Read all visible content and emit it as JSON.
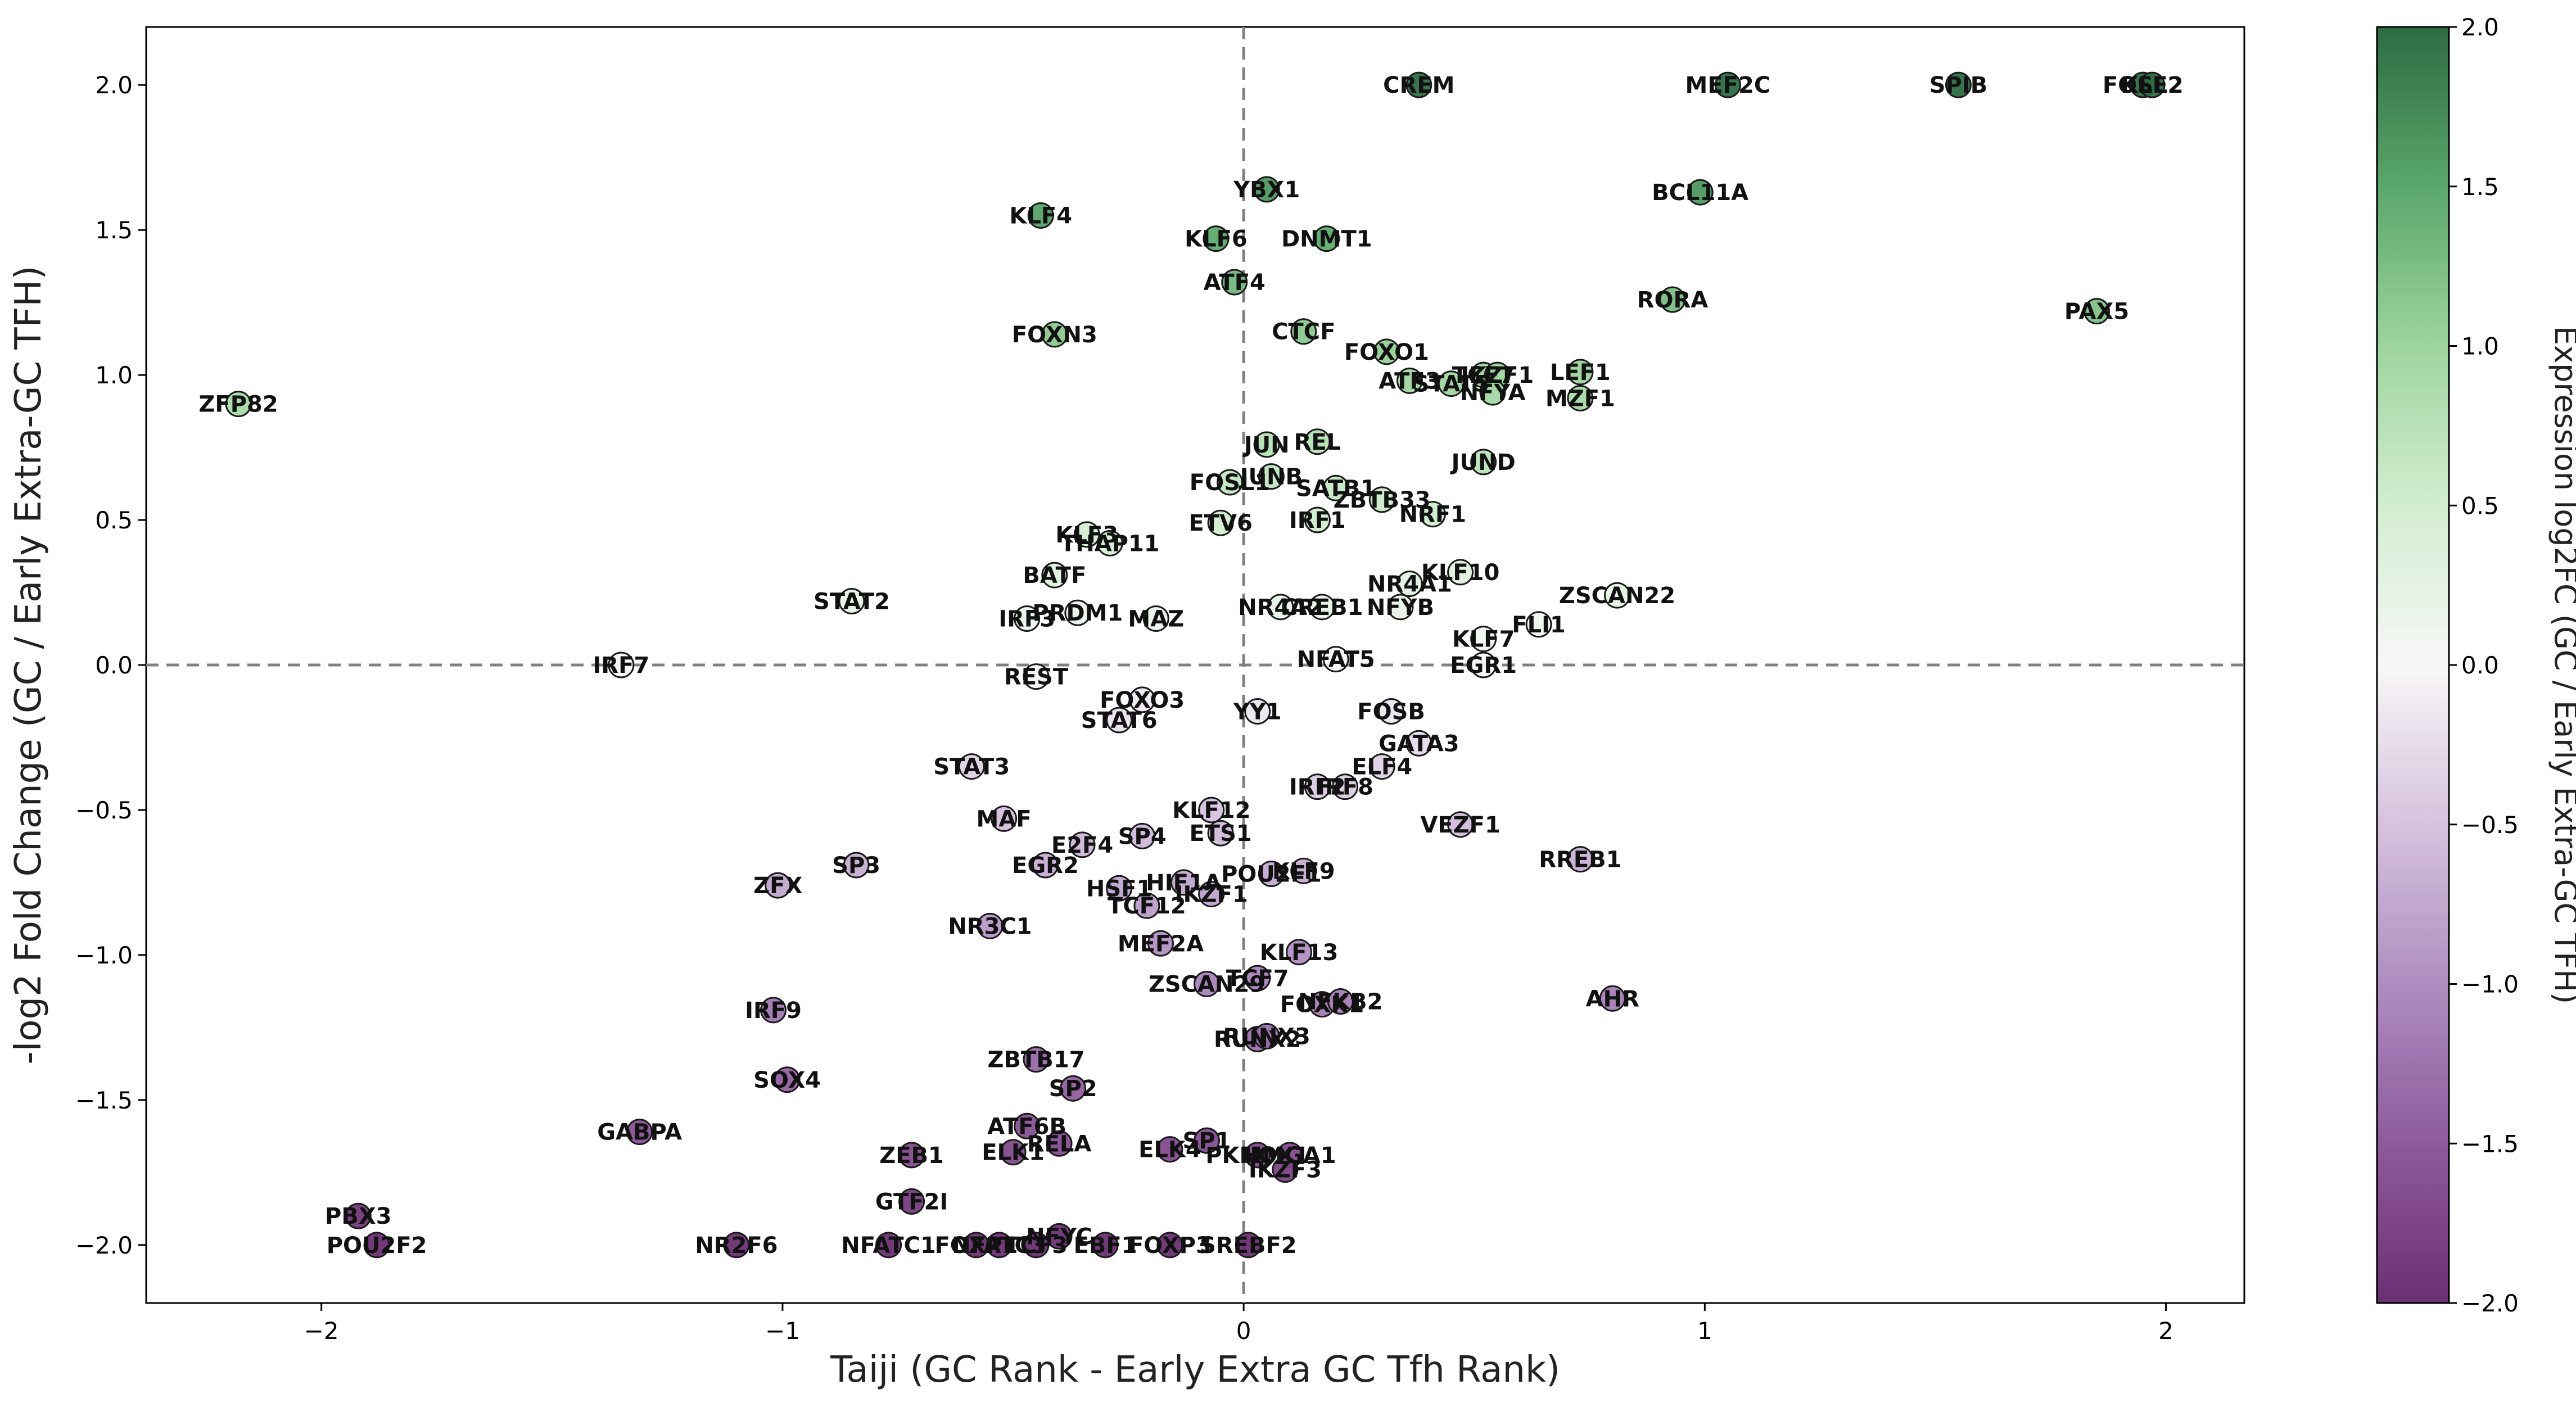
{
  "chart_data": {
    "type": "scatter",
    "title": "",
    "xlabel": "Taiji (GC Rank - Early Extra GC Tfh Rank)",
    "ylabel": "-log2 Fold Change (GC / Early Extra-GC TFH)",
    "xlim": [
      -2.38,
      2.17
    ],
    "ylim": [
      -2.2,
      2.2
    ],
    "x_ticks": [
      -2,
      -1,
      0,
      1,
      2
    ],
    "y_ticks": [
      -2.0,
      -1.5,
      -1.0,
      -0.5,
      0.0,
      0.5,
      1.0,
      1.5,
      2.0
    ],
    "x_tick_labels": [
      "−2",
      "−1",
      "0",
      "1",
      "2"
    ],
    "y_tick_labels": [
      "−2.0",
      "−1.5",
      "−1.0",
      "−0.5",
      "0.0",
      "0.5",
      "1.0",
      "1.5",
      "2.0"
    ],
    "reference_lines": {
      "x": 0,
      "y": 0,
      "style": "dashed"
    },
    "colorbar": {
      "label": "Expression log2FC (GC / Early Extra-GC TFH)",
      "range": [
        -2.0,
        2.0
      ],
      "ticks": [
        -2.0,
        -1.5,
        -1.0,
        -0.5,
        0.0,
        0.5,
        1.0,
        1.5,
        2.0
      ],
      "tick_labels": [
        "−2.0",
        "−1.5",
        "−1.0",
        "−0.5",
        "0.0",
        "0.5",
        "1.0",
        "1.5",
        "2.0"
      ],
      "colormap": "PRGn",
      "low_color": "#6b2f72",
      "mid_color": "#f7f7f7",
      "high_color": "#2e6b43"
    },
    "grid": false,
    "legend": "none",
    "points": [
      {
        "label": "CREM",
        "x": 0.38,
        "y": 2.0
      },
      {
        "label": "MEF2C",
        "x": 1.05,
        "y": 2.0
      },
      {
        "label": "SPIB",
        "x": 1.55,
        "y": 2.0
      },
      {
        "label": "FOSL2",
        "x": 1.95,
        "y": 2.0
      },
      {
        "label": "KLF2",
        "x": 1.97,
        "y": 2.0
      },
      {
        "label": "YBX1",
        "x": 0.05,
        "y": 1.64
      },
      {
        "label": "BCL11A",
        "x": 0.99,
        "y": 1.63
      },
      {
        "label": "KLF4",
        "x": -0.44,
        "y": 1.55
      },
      {
        "label": "KLF6",
        "x": -0.06,
        "y": 1.47
      },
      {
        "label": "DNMT1",
        "x": 0.18,
        "y": 1.47
      },
      {
        "label": "ATF4",
        "x": -0.02,
        "y": 1.32
      },
      {
        "label": "RORA",
        "x": 0.93,
        "y": 1.26
      },
      {
        "label": "PAX5",
        "x": 1.85,
        "y": 1.22
      },
      {
        "label": "FOXN3",
        "x": -0.41,
        "y": 1.14
      },
      {
        "label": "CTCF",
        "x": 0.13,
        "y": 1.15
      },
      {
        "label": "FOXO1",
        "x": 0.31,
        "y": 1.08
      },
      {
        "label": "TCF7",
        "x": 0.52,
        "y": 1.0
      },
      {
        "label": "IKZF1",
        "x": 0.55,
        "y": 1.0
      },
      {
        "label": "LEF1",
        "x": 0.73,
        "y": 1.01
      },
      {
        "label": "ATF3",
        "x": 0.36,
        "y": 0.98
      },
      {
        "label": "STAT5",
        "x": 0.45,
        "y": 0.97
      },
      {
        "label": "NFYA",
        "x": 0.54,
        "y": 0.94
      },
      {
        "label": "MZF1",
        "x": 0.73,
        "y": 0.92
      },
      {
        "label": "ZFP82",
        "x": -2.18,
        "y": 0.9
      },
      {
        "label": "JUN",
        "x": 0.05,
        "y": 0.76
      },
      {
        "label": "REL",
        "x": 0.16,
        "y": 0.77
      },
      {
        "label": "JUND",
        "x": 0.52,
        "y": 0.7
      },
      {
        "label": "JUNB",
        "x": 0.06,
        "y": 0.65
      },
      {
        "label": "FOSL1",
        "x": -0.03,
        "y": 0.63
      },
      {
        "label": "SATB1",
        "x": 0.2,
        "y": 0.61
      },
      {
        "label": "ZBTB33",
        "x": 0.3,
        "y": 0.57
      },
      {
        "label": "NRF1",
        "x": 0.41,
        "y": 0.52
      },
      {
        "label": "ETV6",
        "x": -0.05,
        "y": 0.49
      },
      {
        "label": "IRF1",
        "x": 0.16,
        "y": 0.5
      },
      {
        "label": "KLF3",
        "x": -0.34,
        "y": 0.45
      },
      {
        "label": "THAP11",
        "x": -0.29,
        "y": 0.42
      },
      {
        "label": "BATF",
        "x": -0.41,
        "y": 0.31
      },
      {
        "label": "KLF10",
        "x": 0.47,
        "y": 0.32
      },
      {
        "label": "NR4A1",
        "x": 0.36,
        "y": 0.28
      },
      {
        "label": "ZSCAN22",
        "x": 0.81,
        "y": 0.24
      },
      {
        "label": "STAT2",
        "x": -0.85,
        "y": 0.22
      },
      {
        "label": "NR4A2",
        "x": 0.08,
        "y": 0.2
      },
      {
        "label": "CREB1",
        "x": 0.17,
        "y": 0.2
      },
      {
        "label": "NFYB",
        "x": 0.34,
        "y": 0.2
      },
      {
        "label": "PRDM1",
        "x": -0.36,
        "y": 0.18
      },
      {
        "label": "IRF3",
        "x": -0.47,
        "y": 0.16
      },
      {
        "label": "MAZ",
        "x": -0.19,
        "y": 0.16
      },
      {
        "label": "FLI1",
        "x": 0.64,
        "y": 0.14
      },
      {
        "label": "KLF7",
        "x": 0.52,
        "y": 0.09
      },
      {
        "label": "IRF7",
        "x": -1.35,
        "y": 0.0
      },
      {
        "label": "NFAT5",
        "x": 0.2,
        "y": 0.02
      },
      {
        "label": "EGR1",
        "x": 0.52,
        "y": 0.0
      },
      {
        "label": "REST",
        "x": -0.45,
        "y": -0.04
      },
      {
        "label": "FOXO3",
        "x": -0.22,
        "y": -0.12
      },
      {
        "label": "FOSB",
        "x": 0.32,
        "y": -0.16
      },
      {
        "label": "STAT6",
        "x": -0.27,
        "y": -0.19
      },
      {
        "label": "YY1",
        "x": 0.03,
        "y": -0.16
      },
      {
        "label": "GATA3",
        "x": 0.38,
        "y": -0.27
      },
      {
        "label": "STAT3",
        "x": -0.59,
        "y": -0.35
      },
      {
        "label": "ELF4",
        "x": 0.3,
        "y": -0.35
      },
      {
        "label": "IRF2",
        "x": 0.16,
        "y": -0.42
      },
      {
        "label": "IRF8",
        "x": 0.22,
        "y": -0.42
      },
      {
        "label": "KLF12",
        "x": -0.07,
        "y": -0.5
      },
      {
        "label": "MAF",
        "x": -0.52,
        "y": -0.53
      },
      {
        "label": "VEZF1",
        "x": 0.47,
        "y": -0.55
      },
      {
        "label": "ETS1",
        "x": -0.05,
        "y": -0.58
      },
      {
        "label": "SP4",
        "x": -0.22,
        "y": -0.59
      },
      {
        "label": "E2F4",
        "x": -0.35,
        "y": -0.62
      },
      {
        "label": "RREB1",
        "x": 0.73,
        "y": -0.67
      },
      {
        "label": "SP3",
        "x": -0.84,
        "y": -0.69
      },
      {
        "label": "EGR2",
        "x": -0.43,
        "y": -0.69
      },
      {
        "label": "POU2F1",
        "x": 0.06,
        "y": -0.72
      },
      {
        "label": "KLF9",
        "x": 0.13,
        "y": -0.71
      },
      {
        "label": "ZFX",
        "x": -1.01,
        "y": -0.76
      },
      {
        "label": "HIF1A",
        "x": -0.13,
        "y": -0.75
      },
      {
        "label": "HSF1",
        "x": -0.27,
        "y": -0.77
      },
      {
        "label": "IKZF1",
        "x": -0.07,
        "y": -0.79
      },
      {
        "label": "TCF12",
        "x": -0.21,
        "y": -0.83
      },
      {
        "label": "NR3C1",
        "x": -0.55,
        "y": -0.9
      },
      {
        "label": "MEF2A",
        "x": -0.18,
        "y": -0.96
      },
      {
        "label": "KLF13",
        "x": 0.12,
        "y": -0.99
      },
      {
        "label": "TCF7",
        "x": 0.03,
        "y": -1.08
      },
      {
        "label": "ZSCAN29",
        "x": -0.08,
        "y": -1.1
      },
      {
        "label": "AHR",
        "x": 0.8,
        "y": -1.15
      },
      {
        "label": "FOXK1",
        "x": 0.17,
        "y": -1.17
      },
      {
        "label": "NFKB2",
        "x": 0.21,
        "y": -1.16
      },
      {
        "label": "IRF9",
        "x": -1.02,
        "y": -1.19
      },
      {
        "label": "RUNX2",
        "x": 0.03,
        "y": -1.29
      },
      {
        "label": "RUNX3",
        "x": 0.05,
        "y": -1.28
      },
      {
        "label": "ZBTB17",
        "x": -0.45,
        "y": -1.36
      },
      {
        "label": "SOX4",
        "x": -0.99,
        "y": -1.43
      },
      {
        "label": "SP2",
        "x": -0.37,
        "y": -1.46
      },
      {
        "label": "GABPA",
        "x": -1.31,
        "y": -1.61
      },
      {
        "label": "ATF6B",
        "x": -0.47,
        "y": -1.59
      },
      {
        "label": "ELK4",
        "x": -0.16,
        "y": -1.67
      },
      {
        "label": "SP1",
        "x": -0.08,
        "y": -1.64
      },
      {
        "label": "RELA",
        "x": -0.4,
        "y": -1.65
      },
      {
        "label": "ELK1",
        "x": -0.5,
        "y": -1.68
      },
      {
        "label": "ZEB1",
        "x": -0.72,
        "y": -1.69
      },
      {
        "label": "PKNOX1",
        "x": 0.03,
        "y": -1.69
      },
      {
        "label": "HMGA1",
        "x": 0.1,
        "y": -1.69
      },
      {
        "label": "IKZF3",
        "x": 0.09,
        "y": -1.74
      },
      {
        "label": "GTF2I",
        "x": -0.72,
        "y": -1.85
      },
      {
        "label": "PBX3",
        "x": -1.92,
        "y": -1.9
      },
      {
        "label": "POU2F2",
        "x": -1.88,
        "y": -2.0
      },
      {
        "label": "NR2F6",
        "x": -1.1,
        "y": -2.0
      },
      {
        "label": "NFATC1",
        "x": -0.77,
        "y": -2.0
      },
      {
        "label": "FOXP1",
        "x": -0.58,
        "y": -2.0
      },
      {
        "label": "NFATC3",
        "x": -0.53,
        "y": -2.0
      },
      {
        "label": "TCF3",
        "x": -0.45,
        "y": -2.0
      },
      {
        "label": "NFYC",
        "x": -0.4,
        "y": -1.97
      },
      {
        "label": "EBF1",
        "x": -0.3,
        "y": -2.0
      },
      {
        "label": "FOXP3",
        "x": -0.16,
        "y": -2.0
      },
      {
        "label": "SREBF2",
        "x": 0.01,
        "y": -2.0
      }
    ]
  }
}
